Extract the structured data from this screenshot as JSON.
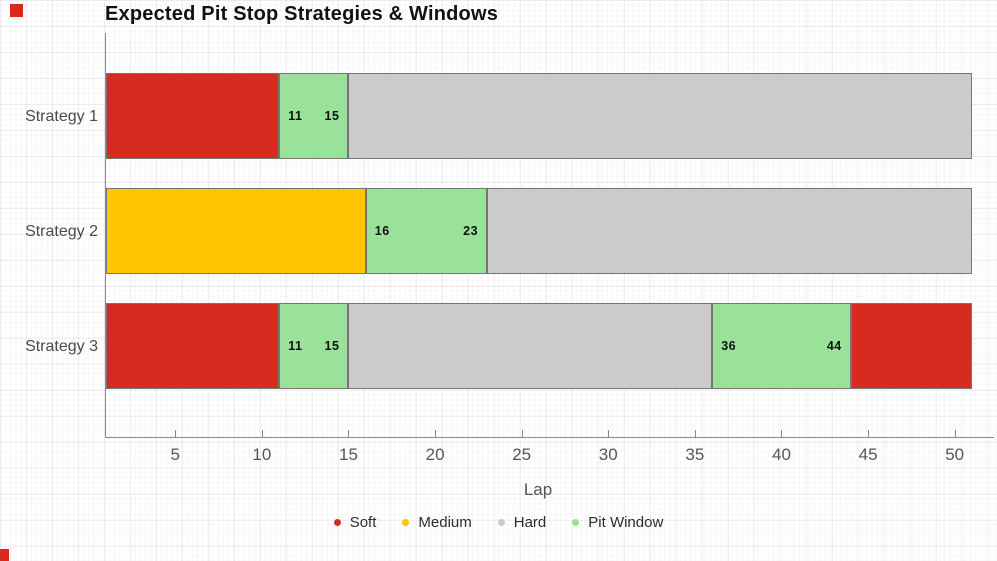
{
  "page": {
    "title": "Expected Pit Stop Strategies & Windows",
    "xlabel": "Lap"
  },
  "colors": {
    "accent": "#d8291c",
    "soft": "#d62b1e",
    "medium": "#ffc600",
    "hard": "#cbcbcb",
    "pit_window": "#9ae29a",
    "axis": "#8a8a8a",
    "segment_border": "#757575"
  },
  "legend": {
    "items": [
      {
        "label": "Soft",
        "color": "#d62b1e"
      },
      {
        "label": "Medium",
        "color": "#ffc600"
      },
      {
        "label": "Hard",
        "color": "#cbcbcb"
      },
      {
        "label": "Pit Window",
        "color": "#9ae29a"
      }
    ]
  },
  "chart_data": {
    "type": "bar",
    "subtype": "horizontal-stacked-range",
    "title": "Expected Pit Stop Strategies & Windows",
    "xlabel": "Lap",
    "xlim": [
      1,
      51
    ],
    "xticks": [
      5,
      10,
      15,
      20,
      25,
      30,
      35,
      40,
      45,
      50
    ],
    "grid": "graph-paper background, no in-plot gridlines",
    "legend_position": "bottom-center",
    "categories": [
      "Strategy 1",
      "Strategy 2",
      "Strategy 3"
    ],
    "rows": [
      {
        "label": "Strategy 1",
        "segments": [
          {
            "compound": "Soft",
            "start_lap": 1,
            "end_lap": 11
          },
          {
            "compound": "Pit Window",
            "start_lap": 11,
            "end_lap": 15,
            "start_label": "11",
            "end_label": "15"
          },
          {
            "compound": "Hard",
            "start_lap": 15,
            "end_lap": 51
          }
        ]
      },
      {
        "label": "Strategy 2",
        "segments": [
          {
            "compound": "Medium",
            "start_lap": 1,
            "end_lap": 16
          },
          {
            "compound": "Pit Window",
            "start_lap": 16,
            "end_lap": 23,
            "start_label": "16",
            "end_label": "23"
          },
          {
            "compound": "Hard",
            "start_lap": 23,
            "end_lap": 51
          }
        ]
      },
      {
        "label": "Strategy 3",
        "segments": [
          {
            "compound": "Soft",
            "start_lap": 1,
            "end_lap": 11
          },
          {
            "compound": "Pit Window",
            "start_lap": 11,
            "end_lap": 15,
            "start_label": "11",
            "end_label": "15"
          },
          {
            "compound": "Hard",
            "start_lap": 15,
            "end_lap": 36
          },
          {
            "compound": "Pit Window",
            "start_lap": 36,
            "end_lap": 44,
            "start_label": "36",
            "end_label": "44"
          },
          {
            "compound": "Soft",
            "start_lap": 44,
            "end_lap": 51
          }
        ]
      }
    ]
  }
}
